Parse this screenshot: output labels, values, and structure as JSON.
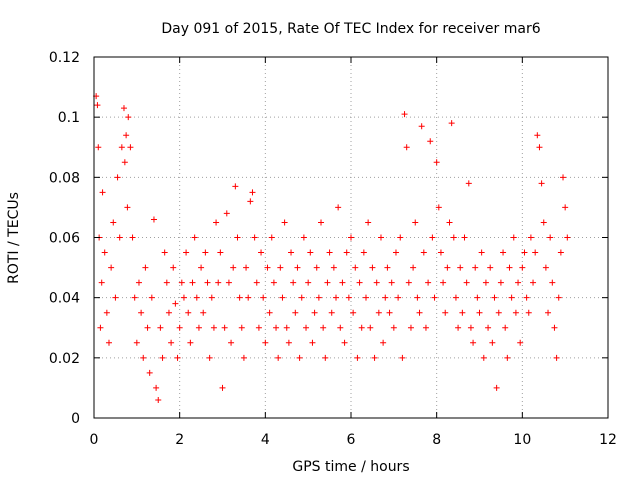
{
  "chart_data": {
    "type": "scatter",
    "title": "Day 091 of 2015, Rate Of TEC Index for receiver mar6",
    "xlabel": "GPS time / hours",
    "ylabel": "ROTI / TECUs",
    "xlim": [
      0,
      12
    ],
    "ylim": [
      0,
      0.12
    ],
    "x_ticks": [
      0,
      2,
      4,
      6,
      8,
      10,
      12
    ],
    "x_tick_labels": [
      "0",
      "2",
      "4",
      "6",
      "8",
      "10",
      "12"
    ],
    "y_ticks": [
      0,
      0.02,
      0.04,
      0.06,
      0.08,
      0.1,
      0.12
    ],
    "y_tick_labels": [
      "0",
      "0.02",
      "0.04",
      "0.06",
      "0.08",
      "0.1",
      "0.12"
    ],
    "grid": true,
    "marker": "+",
    "color": "#ff0000",
    "series": [
      {
        "name": "ROTI",
        "x": [
          0.05,
          0.08,
          0.1,
          0.12,
          0.15,
          0.18,
          0.2,
          0.25,
          0.3,
          0.35,
          0.4,
          0.45,
          0.5,
          0.55,
          0.6,
          0.65,
          0.7,
          0.72,
          0.75,
          0.78,
          0.8,
          0.85,
          0.9,
          0.95,
          1.0,
          1.05,
          1.1,
          1.15,
          1.2,
          1.25,
          1.3,
          1.35,
          1.4,
          1.45,
          1.5,
          1.55,
          1.6,
          1.65,
          1.7,
          1.75,
          1.8,
          1.85,
          1.9,
          1.95,
          2.0,
          2.05,
          2.1,
          2.15,
          2.2,
          2.25,
          2.3,
          2.35,
          2.4,
          2.45,
          2.5,
          2.55,
          2.6,
          2.65,
          2.7,
          2.75,
          2.8,
          2.85,
          2.9,
          2.95,
          3.0,
          3.05,
          3.1,
          3.15,
          3.2,
          3.25,
          3.3,
          3.35,
          3.4,
          3.45,
          3.5,
          3.55,
          3.6,
          3.65,
          3.7,
          3.75,
          3.8,
          3.85,
          3.9,
          3.95,
          4.0,
          4.05,
          4.1,
          4.15,
          4.2,
          4.25,
          4.3,
          4.35,
          4.4,
          4.45,
          4.5,
          4.55,
          4.6,
          4.65,
          4.7,
          4.75,
          4.8,
          4.85,
          4.9,
          4.95,
          5.0,
          5.05,
          5.1,
          5.15,
          5.2,
          5.25,
          5.3,
          5.35,
          5.4,
          5.45,
          5.5,
          5.55,
          5.6,
          5.65,
          5.7,
          5.75,
          5.8,
          5.85,
          5.9,
          5.95,
          6.0,
          6.05,
          6.1,
          6.15,
          6.2,
          6.25,
          6.3,
          6.35,
          6.4,
          6.45,
          6.5,
          6.55,
          6.6,
          6.65,
          6.7,
          6.75,
          6.8,
          6.85,
          6.9,
          6.95,
          7.0,
          7.05,
          7.1,
          7.15,
          7.2,
          7.25,
          7.3,
          7.35,
          7.4,
          7.45,
          7.5,
          7.55,
          7.6,
          7.65,
          7.7,
          7.75,
          7.8,
          7.85,
          7.9,
          7.95,
          8.0,
          8.05,
          8.1,
          8.15,
          8.2,
          8.25,
          8.3,
          8.35,
          8.4,
          8.45,
          8.5,
          8.55,
          8.6,
          8.65,
          8.7,
          8.75,
          8.8,
          8.85,
          8.9,
          8.95,
          9.0,
          9.05,
          9.1,
          9.15,
          9.2,
          9.25,
          9.3,
          9.35,
          9.4,
          9.45,
          9.5,
          9.55,
          9.6,
          9.65,
          9.7,
          9.75,
          9.8,
          9.85,
          9.9,
          9.95,
          10.0,
          10.05,
          10.1,
          10.15,
          10.2,
          10.25,
          10.3,
          10.35,
          10.4,
          10.45,
          10.5,
          10.55,
          10.6,
          10.65,
          10.7,
          10.75,
          10.8,
          10.85,
          10.9,
          10.95,
          11.0,
          11.05
        ],
        "y": [
          0.107,
          0.104,
          0.09,
          0.06,
          0.03,
          0.045,
          0.075,
          0.055,
          0.035,
          0.025,
          0.05,
          0.065,
          0.04,
          0.08,
          0.06,
          0.09,
          0.103,
          0.085,
          0.094,
          0.07,
          0.1,
          0.09,
          0.06,
          0.04,
          0.025,
          0.045,
          0.035,
          0.02,
          0.05,
          0.03,
          0.015,
          0.04,
          0.066,
          0.01,
          0.006,
          0.03,
          0.02,
          0.055,
          0.045,
          0.035,
          0.025,
          0.05,
          0.038,
          0.02,
          0.03,
          0.045,
          0.04,
          0.055,
          0.035,
          0.025,
          0.045,
          0.06,
          0.04,
          0.03,
          0.05,
          0.035,
          0.055,
          0.045,
          0.02,
          0.04,
          0.03,
          0.065,
          0.045,
          0.055,
          0.01,
          0.03,
          0.068,
          0.045,
          0.025,
          0.05,
          0.077,
          0.06,
          0.04,
          0.03,
          0.02,
          0.05,
          0.04,
          0.072,
          0.075,
          0.06,
          0.045,
          0.03,
          0.055,
          0.04,
          0.025,
          0.05,
          0.035,
          0.06,
          0.045,
          0.03,
          0.02,
          0.05,
          0.04,
          0.065,
          0.03,
          0.025,
          0.055,
          0.045,
          0.035,
          0.05,
          0.02,
          0.04,
          0.06,
          0.03,
          0.045,
          0.055,
          0.025,
          0.035,
          0.05,
          0.04,
          0.065,
          0.03,
          0.02,
          0.045,
          0.055,
          0.035,
          0.05,
          0.04,
          0.07,
          0.03,
          0.045,
          0.025,
          0.055,
          0.04,
          0.06,
          0.035,
          0.05,
          0.02,
          0.045,
          0.03,
          0.055,
          0.04,
          0.065,
          0.03,
          0.05,
          0.02,
          0.045,
          0.035,
          0.06,
          0.025,
          0.04,
          0.05,
          0.035,
          0.045,
          0.03,
          0.055,
          0.04,
          0.06,
          0.02,
          0.101,
          0.09,
          0.045,
          0.03,
          0.05,
          0.065,
          0.04,
          0.035,
          0.097,
          0.055,
          0.03,
          0.045,
          0.092,
          0.06,
          0.04,
          0.085,
          0.07,
          0.055,
          0.045,
          0.035,
          0.05,
          0.065,
          0.098,
          0.06,
          0.04,
          0.03,
          0.05,
          0.035,
          0.06,
          0.045,
          0.078,
          0.03,
          0.025,
          0.05,
          0.04,
          0.035,
          0.055,
          0.02,
          0.045,
          0.03,
          0.05,
          0.025,
          0.04,
          0.01,
          0.035,
          0.045,
          0.055,
          0.03,
          0.02,
          0.05,
          0.04,
          0.06,
          0.035,
          0.045,
          0.025,
          0.05,
          0.055,
          0.04,
          0.035,
          0.06,
          0.045,
          0.055,
          0.094,
          0.09,
          0.078,
          0.065,
          0.05,
          0.035,
          0.06,
          0.045,
          0.03,
          0.02,
          0.04,
          0.055,
          0.08,
          0.07,
          0.06
        ]
      }
    ]
  }
}
